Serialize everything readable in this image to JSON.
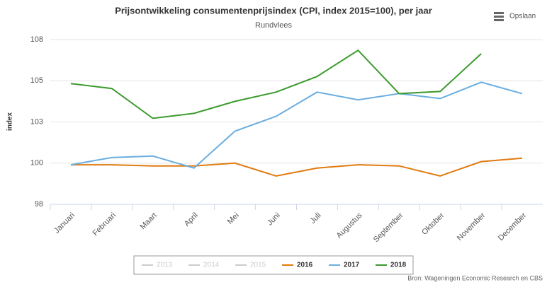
{
  "chart_data": {
    "type": "line",
    "title": "Prijsontwikkeling consumentenprijsindex (CPI, index 2015=100), per jaar",
    "subtitle": "Rundvlees",
    "y_label": "index",
    "button": "Opslaan",
    "source": "Bron: Wageningen Economic Research en CBS",
    "categories": [
      "Januari",
      "Februari",
      "Maart",
      "April",
      "Mei",
      "Juni",
      "Juli",
      "Augustus",
      "September",
      "Oktober",
      "November",
      "December"
    ],
    "series": [
      {
        "name": "2013",
        "color": "#cccccc",
        "visible": false
      },
      {
        "name": "2014",
        "color": "#cccccc",
        "visible": false
      },
      {
        "name": "2015",
        "color": "#cccccc",
        "visible": false
      },
      {
        "name": "2016",
        "color": "#e07b10",
        "values": [
          99.9,
          99.9,
          99.83,
          99.83,
          100,
          99.22,
          99.7,
          99.9,
          99.83,
          99.22,
          100.09,
          100.3
        ]
      },
      {
        "name": "2017",
        "color": "#6aaee0",
        "values": [
          99.9,
          100.34,
          100.43,
          99.7,
          101.94,
          102.84,
          104.31,
          103.84,
          104.22,
          103.92,
          104.91,
          104.22
        ]
      },
      {
        "name": "2018",
        "color": "#3c9a2e",
        "values": [
          104.83,
          104.53,
          102.72,
          103.02,
          103.75,
          104.31,
          105.26,
          106.85,
          104.22,
          104.35,
          106.64,
          null
        ]
      }
    ],
    "ylim": [
      97.5,
      107.5
    ],
    "yticks": [
      {
        "value": 97.5,
        "label": "98"
      },
      100,
      {
        "value": 102.5,
        "label": "103"
      },
      105,
      {
        "value": 107.5,
        "label": "108"
      }
    ],
    "grid": true
  }
}
